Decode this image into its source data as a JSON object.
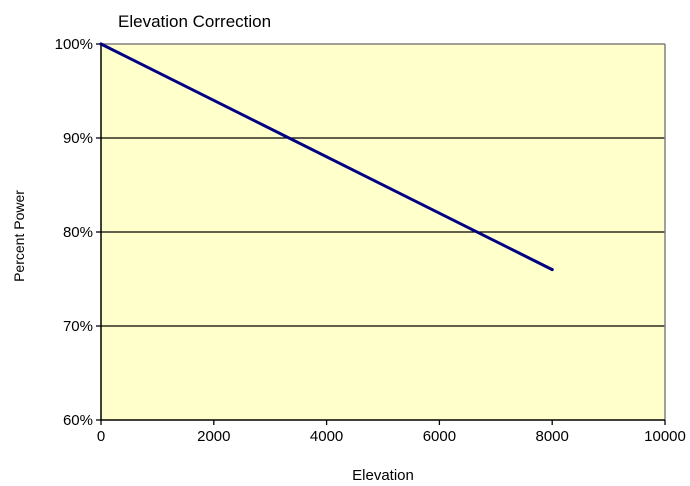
{
  "chart_data": {
    "type": "line",
    "title": "Elevation Correction",
    "xlabel": "Elevation",
    "ylabel": "Percent Power",
    "xlim": [
      0,
      10000
    ],
    "ylim": [
      60,
      100
    ],
    "x_ticks": [
      0,
      2000,
      4000,
      6000,
      8000,
      10000
    ],
    "x_tick_labels": [
      "0",
      "2000",
      "4000",
      "6000",
      "8000",
      "10000"
    ],
    "y_ticks": [
      60,
      70,
      80,
      90,
      100
    ],
    "y_tick_labels": [
      "60%",
      "70%",
      "80%",
      "90%",
      "100%"
    ],
    "grid": "horizontal",
    "legend": "none",
    "colors": {
      "plot_background": "#FFFFCC",
      "line": "#000080",
      "gridline": "#000000",
      "frame": "#808080"
    },
    "series": [
      {
        "x": [
          0,
          8000
        ],
        "y": [
          100,
          76
        ]
      }
    ]
  }
}
